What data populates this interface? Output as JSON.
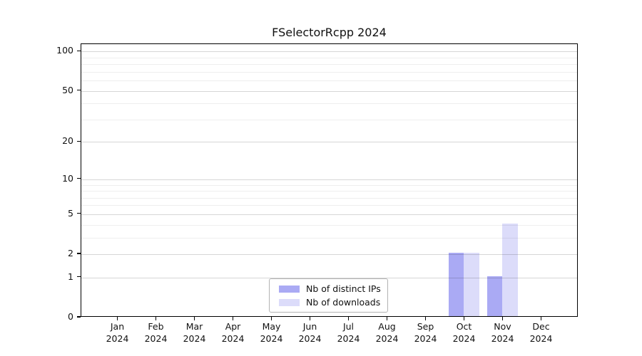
{
  "chart_data": {
    "type": "bar",
    "title": "FSelectorRcpp 2024",
    "categories": [
      {
        "month": "Jan",
        "year": "2024"
      },
      {
        "month": "Feb",
        "year": "2024"
      },
      {
        "month": "Mar",
        "year": "2024"
      },
      {
        "month": "Apr",
        "year": "2024"
      },
      {
        "month": "May",
        "year": "2024"
      },
      {
        "month": "Jun",
        "year": "2024"
      },
      {
        "month": "Jul",
        "year": "2024"
      },
      {
        "month": "Aug",
        "year": "2024"
      },
      {
        "month": "Sep",
        "year": "2024"
      },
      {
        "month": "Oct",
        "year": "2024"
      },
      {
        "month": "Nov",
        "year": "2024"
      },
      {
        "month": "Dec",
        "year": "2024"
      }
    ],
    "series": [
      {
        "name": "Nb of distinct IPs",
        "color": "#aaaaf4",
        "values": [
          0,
          0,
          0,
          0,
          0,
          0,
          0,
          0,
          0,
          2,
          1,
          0
        ]
      },
      {
        "name": "Nb of downloads",
        "color": "#dcdcfa",
        "values": [
          0,
          0,
          0,
          0,
          0,
          0,
          0,
          0,
          0,
          2,
          4,
          0
        ]
      }
    ],
    "xlabel": "",
    "ylabel": "",
    "yscale": "log10(value+1)",
    "ylim": [
      0,
      114
    ],
    "yticks": [
      0,
      1,
      2,
      5,
      10,
      20,
      50,
      100
    ],
    "yticks_minor": [
      3,
      4,
      6,
      7,
      8,
      9,
      30,
      40,
      60,
      70,
      80,
      90
    ],
    "grid": "horizontal, major and minor",
    "legend_position": "bottom center, inside plot",
    "colors": {
      "axis": "#000000",
      "grid_major": "#d6d6d6",
      "grid_minor": "#ededed",
      "legend_border": "#b3b3b3",
      "background": "#ffffff"
    }
  }
}
